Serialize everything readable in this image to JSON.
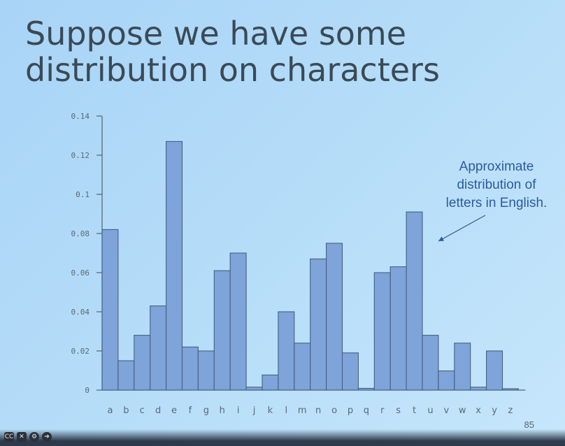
{
  "slide": {
    "title_line1": "Suppose we have some",
    "title_line2": "distribution on characters",
    "annotation_line1": "Approximate",
    "annotation_line2": "distribution of",
    "annotation_line3": "letters in English.",
    "page_number": "85"
  },
  "chart_data": {
    "type": "bar",
    "categories": [
      "a",
      "b",
      "c",
      "d",
      "e",
      "f",
      "g",
      "h",
      "i",
      "j",
      "k",
      "l",
      "m",
      "n",
      "o",
      "p",
      "q",
      "r",
      "s",
      "t",
      "u",
      "v",
      "w",
      "x",
      "y",
      "z"
    ],
    "values": [
      0.082,
      0.015,
      0.028,
      0.043,
      0.127,
      0.022,
      0.02,
      0.061,
      0.07,
      0.0015,
      0.0077,
      0.04,
      0.024,
      0.067,
      0.075,
      0.019,
      0.0009,
      0.06,
      0.063,
      0.091,
      0.028,
      0.0098,
      0.024,
      0.0015,
      0.02,
      0.0007
    ],
    "title": "",
    "xlabel": "",
    "ylabel": "",
    "ylim": [
      0,
      0.14
    ],
    "yticks": [
      "0",
      "0.02",
      "0.04",
      "0.06",
      "0.08",
      "0.1",
      "0.12",
      "0.14"
    ],
    "bar_color": "#7ea4da",
    "edge_color": "#465f83",
    "grid": false,
    "legend": "none"
  },
  "player": {
    "icons": [
      "captions-icon",
      "mute-icon",
      "settings-icon",
      "forward-icon"
    ]
  }
}
